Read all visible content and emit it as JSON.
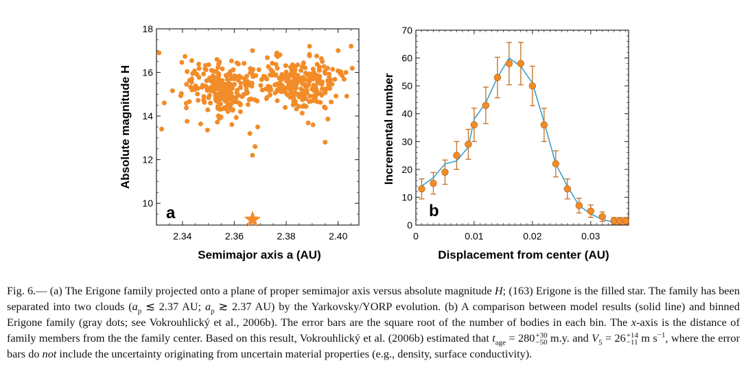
{
  "chart_data": [
    {
      "type": "scatter",
      "panel_label": "a",
      "xlabel": "Semimajor axis a (AU)",
      "ylabel": "Absolute magnitude H",
      "xlim": [
        2.33,
        2.408
      ],
      "ylim": [
        9.0,
        18.0
      ],
      "xticks": [
        "2.34",
        "2.36",
        "2.38",
        "2.40"
      ],
      "yticks": [
        "10",
        "12",
        "14",
        "16",
        "18"
      ],
      "marker_color": "#f28c28",
      "star": {
        "x": 2.367,
        "y": 9.25,
        "label": "(163) Erigone"
      },
      "clouds": [
        {
          "center_x": 2.356,
          "center_y": 15.1,
          "spread_x": 0.01,
          "spread_y": 0.9,
          "count": 230
        },
        {
          "center_x": 2.385,
          "center_y": 15.3,
          "spread_x": 0.01,
          "spread_y": 0.8,
          "count": 240
        }
      ],
      "outliers": [
        {
          "x": 2.331,
          "y": 16.9
        },
        {
          "x": 2.333,
          "y": 14.6
        },
        {
          "x": 2.332,
          "y": 13.4
        },
        {
          "x": 2.367,
          "y": 17.0
        },
        {
          "x": 2.366,
          "y": 13.2
        },
        {
          "x": 2.368,
          "y": 12.6
        },
        {
          "x": 2.367,
          "y": 12.2
        },
        {
          "x": 2.369,
          "y": 13.5
        },
        {
          "x": 2.395,
          "y": 12.8
        },
        {
          "x": 2.405,
          "y": 17.2
        },
        {
          "x": 2.403,
          "y": 16.0
        },
        {
          "x": 2.389,
          "y": 17.2
        },
        {
          "x": 2.4,
          "y": 17.0
        }
      ]
    },
    {
      "type": "line",
      "panel_label": "b",
      "xlabel": "Displacement from center (AU)",
      "ylabel": "Incremental number",
      "xlim": [
        0,
        0.0365
      ],
      "ylim": [
        0,
        70
      ],
      "xticks": [
        "0",
        "0.01",
        "0.02",
        "0.03"
      ],
      "yticks": [
        "0",
        "10",
        "20",
        "30",
        "40",
        "50",
        "60",
        "70"
      ],
      "line_color": "#3a9fc8",
      "marker_color": "#f28c28",
      "points": [
        {
          "x": 0.001,
          "y": 13
        },
        {
          "x": 0.003,
          "y": 15
        },
        {
          "x": 0.005,
          "y": 19
        },
        {
          "x": 0.007,
          "y": 25
        },
        {
          "x": 0.009,
          "y": 29
        },
        {
          "x": 0.01,
          "y": 36
        },
        {
          "x": 0.012,
          "y": 43
        },
        {
          "x": 0.014,
          "y": 53
        },
        {
          "x": 0.016,
          "y": 58
        },
        {
          "x": 0.018,
          "y": 58
        },
        {
          "x": 0.02,
          "y": 50
        },
        {
          "x": 0.022,
          "y": 36
        },
        {
          "x": 0.024,
          "y": 22
        },
        {
          "x": 0.026,
          "y": 13
        },
        {
          "x": 0.028,
          "y": 7
        },
        {
          "x": 0.03,
          "y": 5
        },
        {
          "x": 0.032,
          "y": 3
        },
        {
          "x": 0.034,
          "y": 1.5
        },
        {
          "x": 0.035,
          "y": 1.5
        },
        {
          "x": 0.036,
          "y": 1.5
        }
      ],
      "model": [
        {
          "x": 0.001,
          "y": 14
        },
        {
          "x": 0.003,
          "y": 17
        },
        {
          "x": 0.005,
          "y": 22
        },
        {
          "x": 0.007,
          "y": 23
        },
        {
          "x": 0.009,
          "y": 28
        },
        {
          "x": 0.01,
          "y": 38
        },
        {
          "x": 0.012,
          "y": 44
        },
        {
          "x": 0.014,
          "y": 53
        },
        {
          "x": 0.016,
          "y": 60
        },
        {
          "x": 0.018,
          "y": 57
        },
        {
          "x": 0.02,
          "y": 51
        },
        {
          "x": 0.022,
          "y": 37
        },
        {
          "x": 0.024,
          "y": 22
        },
        {
          "x": 0.026,
          "y": 14
        },
        {
          "x": 0.028,
          "y": 7
        },
        {
          "x": 0.03,
          "y": 4
        },
        {
          "x": 0.032,
          "y": 2
        },
        {
          "x": 0.034,
          "y": 1
        },
        {
          "x": 0.035,
          "y": 1
        },
        {
          "x": 0.036,
          "y": 1
        }
      ]
    }
  ],
  "caption": {
    "fig_label": "Fig. 6.—",
    "part1": " (a) The Erigone family projected onto a plane of proper semimajor axis versus absolute magnitude ",
    "H_symbol": "H",
    "part2": "; (163) Erigone is the filled star. The family has been separated into two clouds (",
    "ap1": "a",
    "ap_sub": "p",
    "lt": " ≲ 2.37 AU; ",
    "gt": " ≳ 2.37 AU) by the Yarkovsky/YORP evolution. (b) A comparison between model results (solid line) and binned Erigone family (gray dots; see Vokrouhlický et al., 2006b). The error bars are the square root of the number of bodies in each bin. The ",
    "x_symbol": "x",
    "part3": "-axis is the distance of family members from the the family center. Based on this result, Vokrouhlický et al. (2006b) estimated that ",
    "t_symbol": "t",
    "t_sub": "age",
    "t_val": " = 280",
    "t_plus": "+30",
    "t_minus": "−50",
    "part4": " m.y. and ",
    "V_symbol": "V",
    "V_sub": "5",
    "V_val": " = 26",
    "V_plus": "+14",
    "V_minus": "−11",
    "part5": " m s",
    "unit_exp": "−1",
    "part6": ", where the error bars do ",
    "not": "not",
    "part7": " include the uncertainty originating from uncertain material properties (e.g., density, surface conductivity)."
  }
}
